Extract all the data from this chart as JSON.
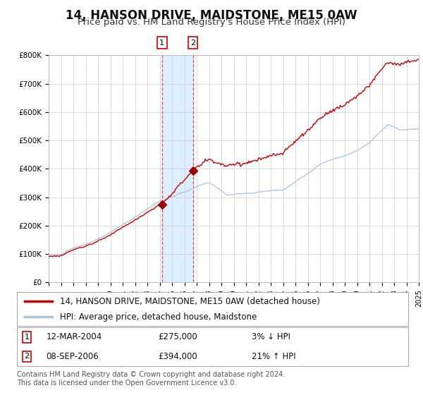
{
  "title": "14, HANSON DRIVE, MAIDSTONE, ME15 0AW",
  "subtitle": "Price paid vs. HM Land Registry's House Price Index (HPI)",
  "ylim": [
    0,
    800000
  ],
  "yticks": [
    0,
    100000,
    200000,
    300000,
    400000,
    500000,
    600000,
    700000,
    800000
  ],
  "ytick_labels": [
    "£0",
    "£100K",
    "£200K",
    "£300K",
    "£400K",
    "£500K",
    "£600K",
    "£700K",
    "£800K"
  ],
  "hpi_color": "#a8c4e0",
  "price_color": "#cc0000",
  "marker_color": "#990000",
  "shading_color": "#ddeeff",
  "vline_color": "#dd3333",
  "grid_color": "#cccccc",
  "background_color": "#ffffff",
  "t1_x": 2004.19,
  "t1_price": 275000,
  "t2_x": 2006.69,
  "t2_price": 394000,
  "xlim_start": 1995,
  "xlim_end": 2025,
  "legend_price_label": "14, HANSON DRIVE, MAIDSTONE, ME15 0AW (detached house)",
  "legend_hpi_label": "HPI: Average price, detached house, Maidstone",
  "footer1": "Contains HM Land Registry data © Crown copyright and database right 2024.",
  "footer2": "This data is licensed under the Open Government Licence v3.0.",
  "title_fontsize": 12,
  "subtitle_fontsize": 9.5,
  "tick_fontsize": 7.5,
  "legend_fontsize": 8.5,
  "footer_fontsize": 7,
  "info_fontsize": 8.5
}
